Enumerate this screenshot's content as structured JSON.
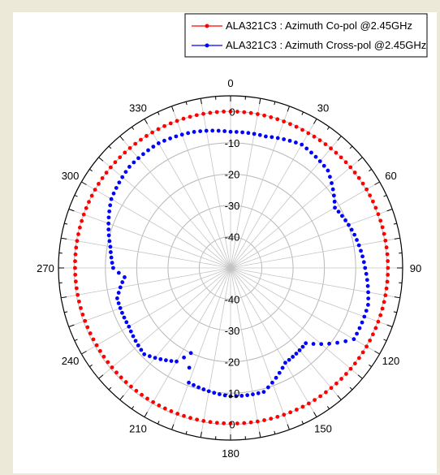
{
  "chart_data": {
    "type": "polar-line",
    "angle_unit": "degrees",
    "angle_direction": "clockwise",
    "angle_zero": "top",
    "angle_tick_labels": [
      "0",
      "30",
      "60",
      "90",
      "120",
      "150",
      "180",
      "210",
      "240",
      "270",
      "300",
      "330"
    ],
    "angle_ticks": [
      0,
      30,
      60,
      90,
      120,
      150,
      180,
      210,
      240,
      270,
      300,
      330
    ],
    "radial_range": [
      -50,
      5
    ],
    "radial_tick_values": [
      0,
      -10,
      -20,
      -30,
      -40
    ],
    "radial_tick_labels": [
      "0",
      "-10",
      "-20",
      "-30",
      "-40"
    ],
    "radial_label_angles": [
      0,
      180
    ],
    "grid": true,
    "legend_position": "top-right",
    "series": [
      {
        "name": "ALA321C3 : Azimuth Co-pol @2.45GHz",
        "color": "#ff0000",
        "marker": "circle",
        "theta": [
          0,
          30,
          60,
          90,
          120,
          150,
          180,
          210,
          240,
          270,
          300,
          330
        ],
        "r": [
          0,
          -0.3,
          0.2,
          0.3,
          0.2,
          0,
          -0.3,
          -0.5,
          -0.6,
          -0.3,
          0,
          0
        ]
      },
      {
        "name": "ALA321C3 : Azimuth Cross-pol @2.45GHz",
        "color": "#0000ff",
        "marker": "circle",
        "theta": [
          0,
          15,
          30,
          45,
          60,
          75,
          90,
          105,
          120,
          135,
          150,
          165,
          180,
          195,
          200,
          205,
          210,
          225,
          240,
          255,
          265,
          270,
          280,
          300,
          315,
          330,
          345
        ],
        "r": [
          -6.5,
          -6.5,
          -4.5,
          -6,
          -11.5,
          -9,
          -7,
          -4.5,
          -4.5,
          -16,
          -15,
          -9,
          -9,
          -10.5,
          -11,
          -20,
          -15.5,
          -11,
          -12.5,
          -12.5,
          -16,
          -12.5,
          -11,
          -6,
          -4.3,
          -4,
          -5
        ]
      }
    ]
  }
}
